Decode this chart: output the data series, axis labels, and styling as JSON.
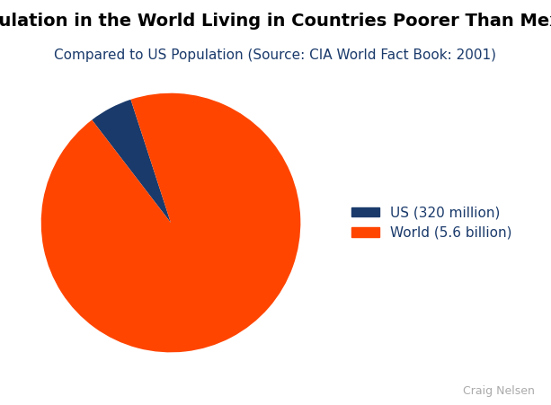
{
  "title": "Population in the World Living in Countries Poorer Than Mexico",
  "subtitle": "Compared to US Population (Source: CIA World Fact Book: 2001)",
  "values": [
    320,
    5600
  ],
  "labels": [
    "US (320 million)",
    "World (5.6 billion)"
  ],
  "colors": [
    "#1a3a6b",
    "#ff4500"
  ],
  "startangle": 108,
  "attribution": "Craig Nelsen",
  "title_fontsize": 14,
  "subtitle_fontsize": 11,
  "legend_fontsize": 11,
  "attribution_fontsize": 9,
  "background_color": "#ffffff"
}
